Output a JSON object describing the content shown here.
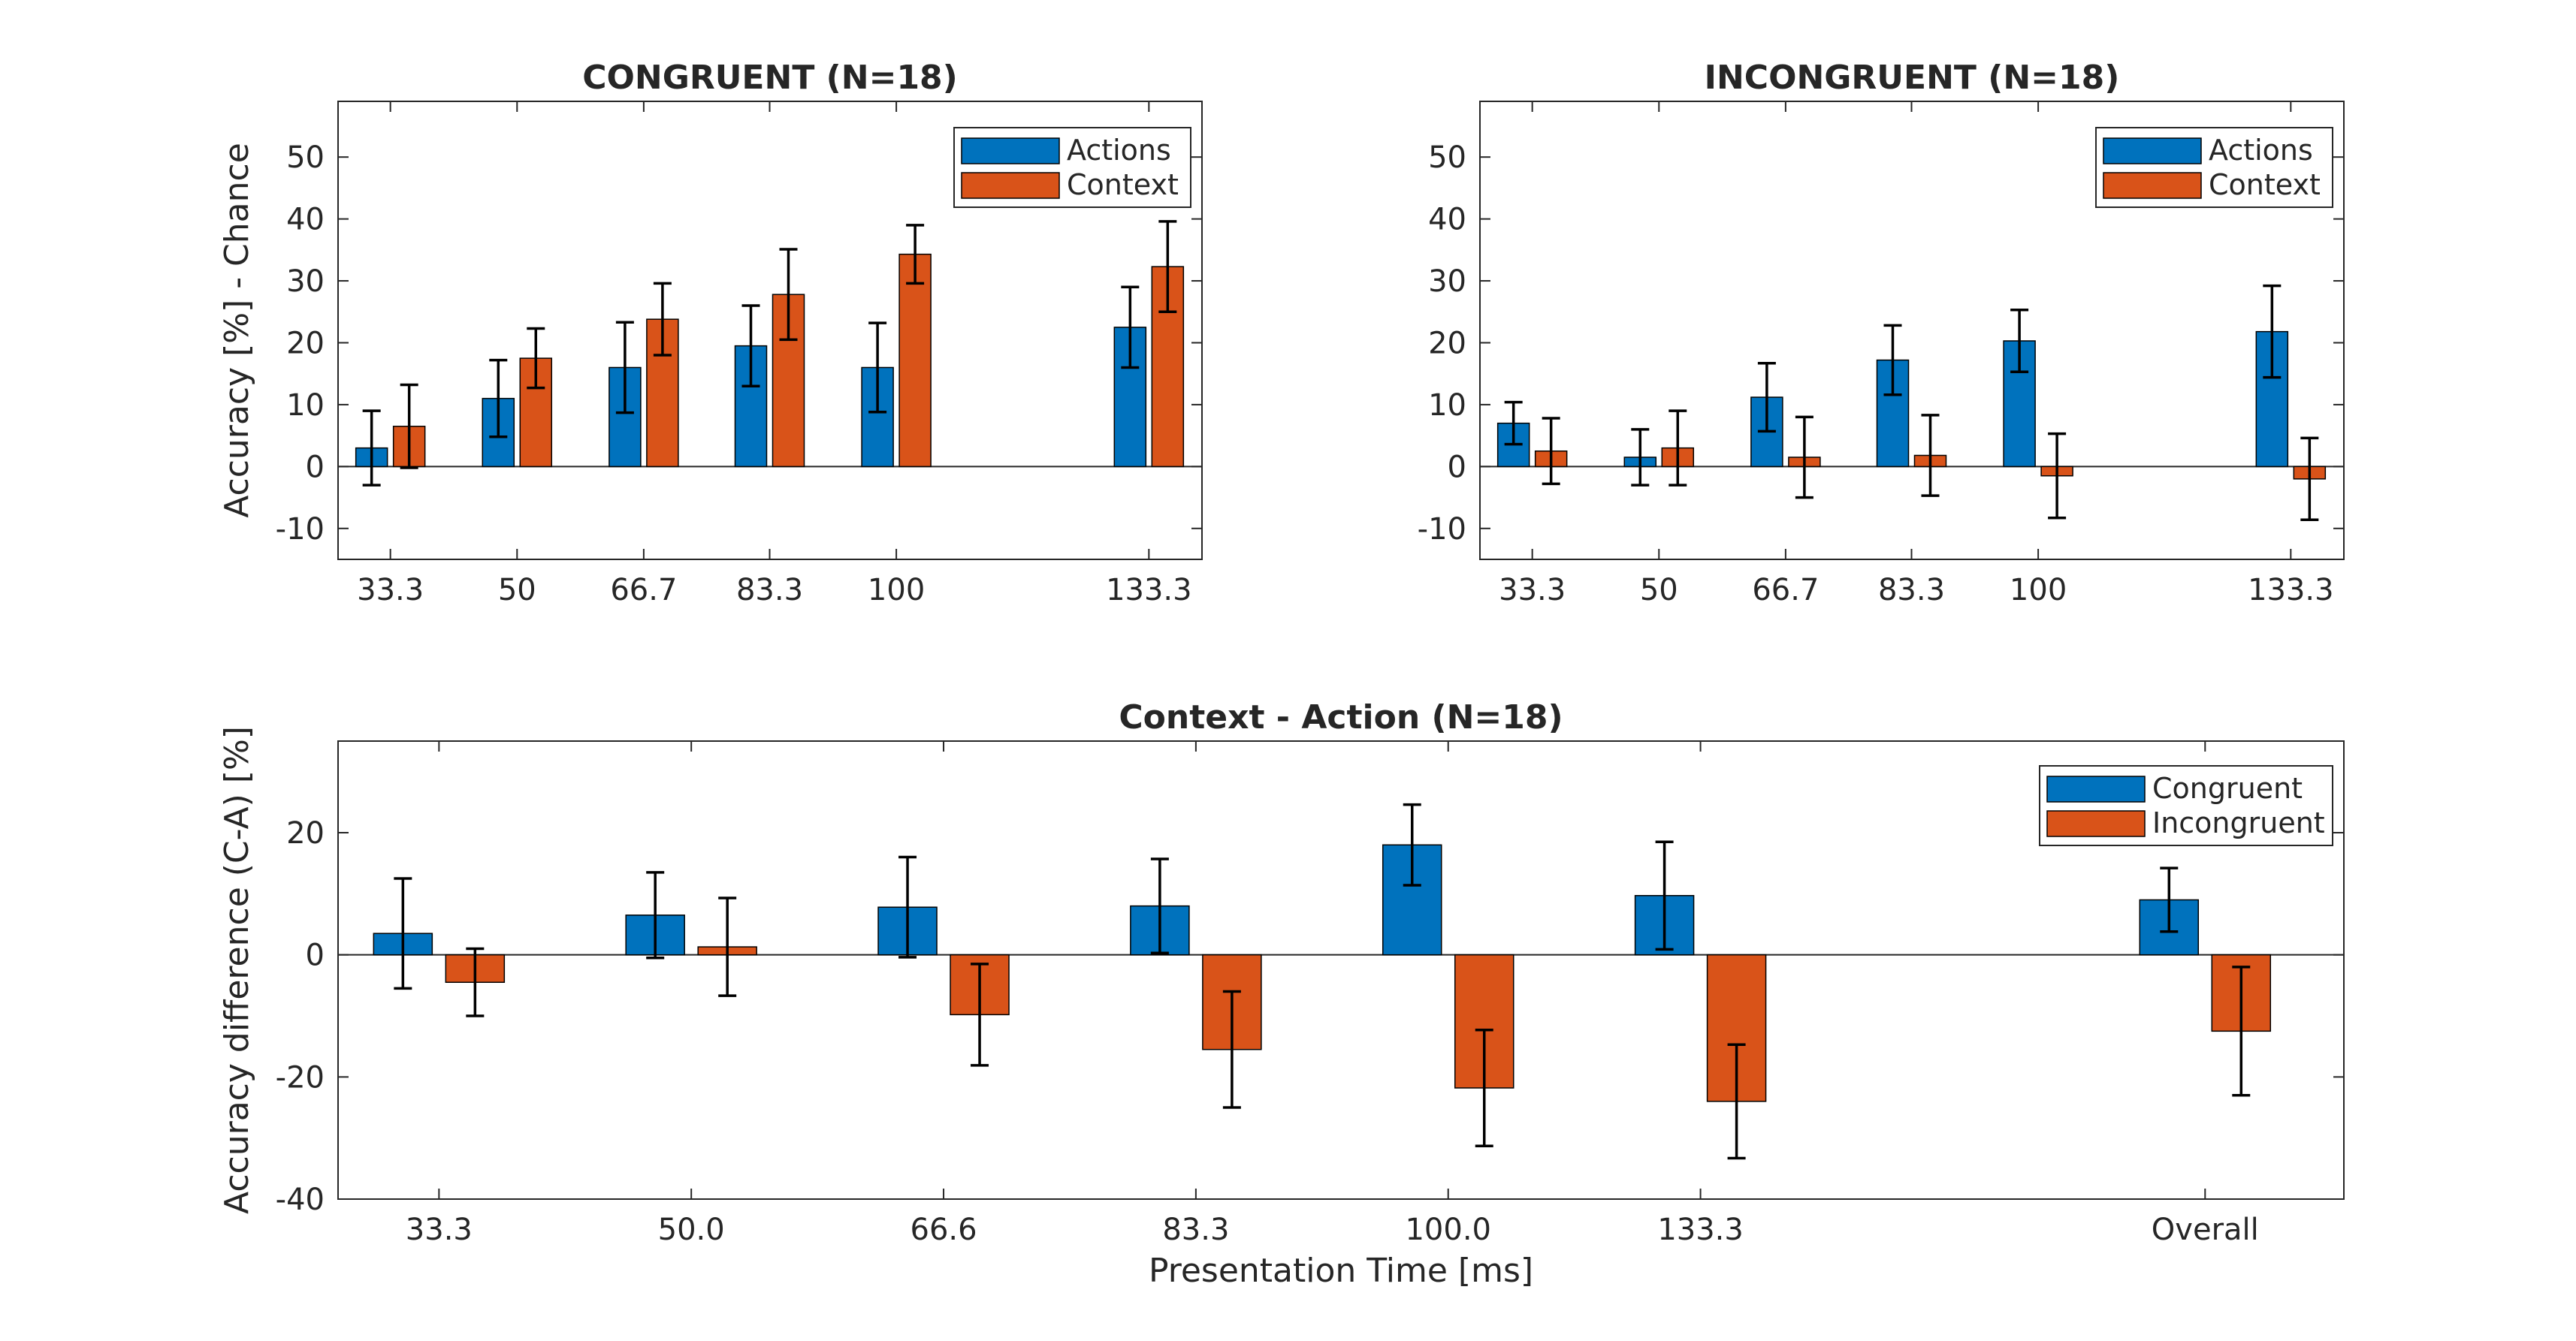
{
  "colors": {
    "blue": "#0072bd",
    "orange": "#d95319",
    "axis": "#262626",
    "errorbar": "#000000"
  },
  "shared_xlabel": "Presentation Time [ms]",
  "chart_data": [
    {
      "type": "bar",
      "title": "CONGRUENT (N=18)",
      "xlabel": "",
      "ylabel": "Accuracy [%] - Chance",
      "x": [
        33.3,
        50,
        66.7,
        83.3,
        100,
        133.3
      ],
      "xticklabels": [
        "33.3",
        "50",
        "66.7",
        "83.3",
        "100",
        "133.3"
      ],
      "xlim": [
        26.4,
        140.3
      ],
      "ylim": [
        -15,
        59
      ],
      "yticks": [
        -10,
        0,
        10,
        20,
        30,
        40,
        50
      ],
      "yticklabels": [
        "-10",
        "0",
        "10",
        "20",
        "30",
        "40",
        "50"
      ],
      "legend_position": "top-right",
      "series": [
        {
          "name": "Actions",
          "color": "#0072bd",
          "values": [
            3,
            11,
            16,
            19.5,
            16,
            22.5
          ],
          "err": [
            6,
            6.2,
            7.3,
            6.5,
            7.2,
            6.5
          ]
        },
        {
          "name": "Context",
          "color": "#d95319",
          "values": [
            6.5,
            17.5,
            23.8,
            27.8,
            34.3,
            32.3
          ],
          "err": [
            6.7,
            4.8,
            5.8,
            7.3,
            4.7,
            7.3
          ]
        }
      ]
    },
    {
      "type": "bar",
      "title": "INCONGRUENT (N=18)",
      "xlabel": "",
      "ylabel": "",
      "x": [
        33.3,
        50,
        66.7,
        83.3,
        100,
        133.3
      ],
      "xticklabels": [
        "33.3",
        "50",
        "66.7",
        "83.3",
        "100",
        "133.3"
      ],
      "xlim": [
        26.4,
        140.3
      ],
      "ylim": [
        -15,
        59
      ],
      "yticks": [
        -10,
        0,
        10,
        20,
        30,
        40,
        50
      ],
      "yticklabels": [
        "-10",
        "0",
        "10",
        "20",
        "30",
        "40",
        "50"
      ],
      "legend_position": "top-right",
      "series": [
        {
          "name": "Actions",
          "color": "#0072bd",
          "values": [
            7,
            1.5,
            11.2,
            17.2,
            20.3,
            21.8
          ],
          "err": [
            3.4,
            4.5,
            5.5,
            5.6,
            5,
            7.4
          ]
        },
        {
          "name": "Context",
          "color": "#d95319",
          "values": [
            2.5,
            3,
            1.5,
            1.8,
            -1.5,
            -2
          ],
          "err": [
            5.3,
            6,
            6.5,
            6.5,
            6.8,
            6.6
          ]
        }
      ]
    },
    {
      "type": "bar",
      "title": "Context - Action (N=18)",
      "xlabel": "Presentation Time [ms]",
      "ylabel": "Accuracy difference (C-A) [%]",
      "x": [
        1,
        2,
        3,
        4,
        5,
        6,
        8
      ],
      "xticklabels": [
        "33.3",
        "50.0",
        "66.6",
        "83.3",
        "100.0",
        "133.3",
        "Overall"
      ],
      "xlim": [
        0.6,
        8.55
      ],
      "ylim": [
        -40,
        35
      ],
      "yticks": [
        -40,
        -20,
        0,
        20
      ],
      "yticklabels": [
        "-40",
        "-20",
        "0",
        "20"
      ],
      "legend_position": "top-right",
      "series": [
        {
          "name": "Congruent",
          "color": "#0072bd",
          "values": [
            3.5,
            6.5,
            7.8,
            8,
            18,
            9.7,
            9
          ],
          "err": [
            9,
            7,
            8.2,
            7.7,
            6.6,
            8.8,
            5.2
          ]
        },
        {
          "name": "Incongruent",
          "color": "#d95319",
          "values": [
            -4.5,
            1.3,
            -9.8,
            -15.5,
            -21.8,
            -24,
            -12.5
          ],
          "err": [
            5.5,
            8,
            8.3,
            9.5,
            9.5,
            9.3,
            10.5
          ]
        }
      ]
    }
  ]
}
